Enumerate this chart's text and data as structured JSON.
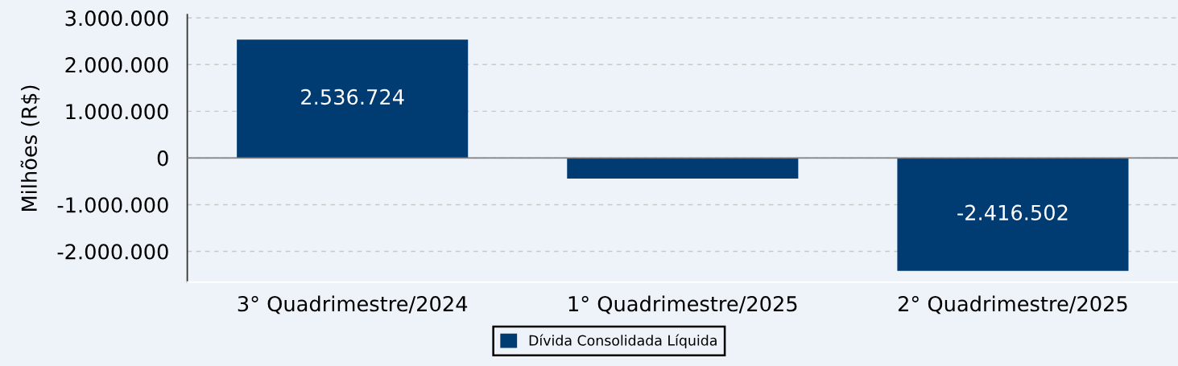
{
  "chart_data": {
    "type": "bar",
    "ylabel": "Milhões (R$)",
    "categories": [
      "3° Quadrimestre/2024",
      "1° Quadrimestre/2025",
      "2° Quadrimestre/2025"
    ],
    "series": [
      {
        "name": "Dívida Consolidada Líquida",
        "color": "#003b71",
        "values": [
          2536724,
          -440000,
          -2416502
        ],
        "value_labels": [
          "2.536.724",
          null,
          "-2.416.502"
        ]
      }
    ],
    "ylim": [
      -2660000,
      3070000
    ],
    "yticks": [
      {
        "value": 3000000,
        "label": "3.000.000"
      },
      {
        "value": 2000000,
        "label": "2.000.000"
      },
      {
        "value": 1000000,
        "label": "1.000.000"
      },
      0,
      {
        "value": -1000000,
        "label": "-1.000.000"
      },
      {
        "value": -2000000,
        "label": "-2.000.000"
      }
    ],
    "grid": "y",
    "legend": "bottom",
    "ref_lines": [
      {
        "axis": "y",
        "value": 0,
        "color": "#808080"
      }
    ]
  }
}
